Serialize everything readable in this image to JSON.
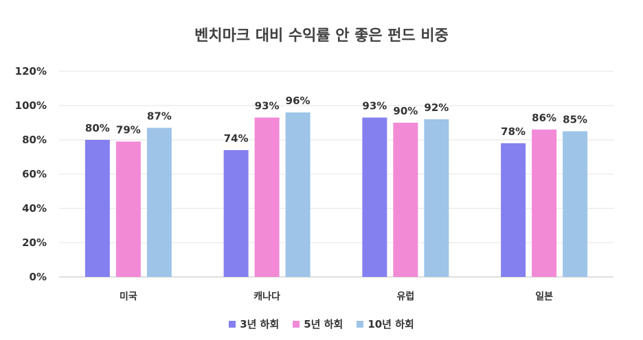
{
  "chart_data": {
    "type": "bar",
    "title": "벤치마크 대비 수익률 안 좋은 펀드 비중",
    "categories": [
      "미국",
      "캐나다",
      "유럽",
      "일본"
    ],
    "series": [
      {
        "name": "3년 하회",
        "color": "#8480F0",
        "values": [
          80,
          74,
          93,
          78
        ]
      },
      {
        "name": "5년 하회",
        "color": "#F28AD6",
        "values": [
          79,
          93,
          90,
          86
        ]
      },
      {
        "name": "10년 하회",
        "color": "#9EC4E8",
        "values": [
          87,
          96,
          92,
          85
        ]
      }
    ],
    "ylim": [
      0,
      120
    ],
    "yticks": [
      0,
      20,
      40,
      60,
      80,
      100,
      120
    ],
    "value_suffix": "%",
    "grid": true,
    "legend_position": "bottom"
  }
}
